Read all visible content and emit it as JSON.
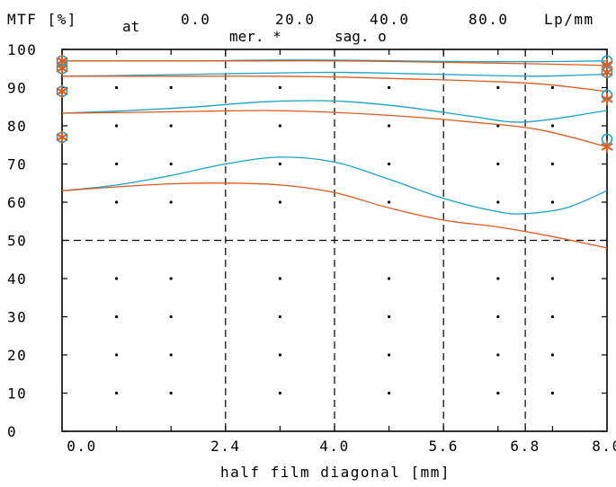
{
  "chart_data": {
    "type": "line",
    "header": {
      "y_unit": "MTF [%]",
      "at": "at",
      "freq_labels": [
        "0.0",
        "20.0",
        "40.0",
        "80.0"
      ],
      "freq_unit": "Lp/mm",
      "legend_mer": "mer. *",
      "legend_sag": "sag. o"
    },
    "xlabel": "half film diagonal [mm]",
    "x_range": [
      0,
      8
    ],
    "y_range": [
      0,
      100
    ],
    "x_ticks": [
      {
        "v": 0,
        "label": "0.0"
      },
      {
        "v": 2.4,
        "label": "2.4"
      },
      {
        "v": 4,
        "label": "4.0"
      },
      {
        "v": 5.6,
        "label": "5.6"
      },
      {
        "v": 6.8,
        "label": "6.8"
      },
      {
        "v": 8,
        "label": "8.0"
      }
    ],
    "y_ticks": [
      "0",
      "10",
      "20",
      "30",
      "40",
      "50",
      "60",
      "70",
      "80",
      "90",
      "100"
    ],
    "dashed_vertical_x": [
      2.4,
      4,
      5.6,
      6.8
    ],
    "dashed_horizontal_y": [
      50
    ],
    "grid_dots_x": [
      0.8,
      1.6,
      3.2,
      4.8,
      6.4,
      7.2
    ],
    "grid_dots_y": [
      10,
      20,
      30,
      40,
      60,
      70,
      80,
      90
    ],
    "colors": {
      "sagittal": "#1aa3c8",
      "meridional": "#e05a1e"
    },
    "series": [
      {
        "kind": "sagittal",
        "x": [
          0,
          1,
          2,
          3,
          4,
          5,
          6,
          7,
          8
        ],
        "values": [
          97,
          97,
          97,
          97.2,
          97.2,
          97,
          96.8,
          96.8,
          97
        ]
      },
      {
        "kind": "meridional",
        "x": [
          0,
          1,
          2,
          3,
          4,
          5,
          6,
          7,
          8
        ],
        "values": [
          97,
          97,
          97,
          97,
          97,
          96.8,
          96.5,
          96.2,
          95.8
        ]
      },
      {
        "kind": "sagittal",
        "x": [
          0,
          1,
          2,
          3,
          4,
          5,
          6,
          7,
          8
        ],
        "values": [
          93,
          93.2,
          93.5,
          93.8,
          94,
          93.7,
          93.3,
          93,
          93.5
        ]
      },
      {
        "kind": "meridional",
        "x": [
          0,
          1,
          2,
          3,
          4,
          5,
          6,
          7,
          8
        ],
        "values": [
          93,
          93,
          93,
          93,
          92.8,
          92.3,
          91.8,
          91,
          89
        ]
      },
      {
        "kind": "sagittal",
        "x": [
          0,
          1,
          2,
          3,
          4,
          5,
          6,
          6.8,
          8
        ],
        "values": [
          83.3,
          84,
          85,
          86.3,
          86.5,
          85,
          82.5,
          81,
          84
        ]
      },
      {
        "kind": "meridional",
        "x": [
          0,
          1,
          2,
          3,
          4,
          5,
          6,
          7,
          8
        ],
        "values": [
          83.3,
          83.5,
          83.8,
          84,
          83.5,
          82.5,
          81,
          79,
          74.5
        ]
      },
      {
        "kind": "sagittal",
        "x": [
          0,
          0.8,
          1.6,
          2.4,
          3.2,
          4,
          4.8,
          5.6,
          6.4,
          6.8,
          7.4,
          8
        ],
        "values": [
          63,
          64.5,
          67,
          70,
          71.8,
          70.5,
          66,
          61,
          57.5,
          57,
          58.5,
          63
        ]
      },
      {
        "kind": "meridional",
        "x": [
          0,
          0.8,
          1.6,
          2.4,
          3.2,
          4,
          4.8,
          5.6,
          6.4,
          7.2,
          8
        ],
        "values": [
          63,
          64,
          64.8,
          65,
          64.5,
          62.5,
          58.5,
          55.3,
          53.5,
          51,
          48
        ]
      }
    ],
    "markers": {
      "left_x": 0,
      "left_y": [
        97,
        95,
        89,
        77
      ],
      "right_x": 8,
      "right_sag_y": [
        97,
        94,
        88,
        76.5
      ],
      "right_mer_y": [
        96,
        94,
        87,
        74.5
      ]
    },
    "grid": "dots-and-dashed"
  }
}
